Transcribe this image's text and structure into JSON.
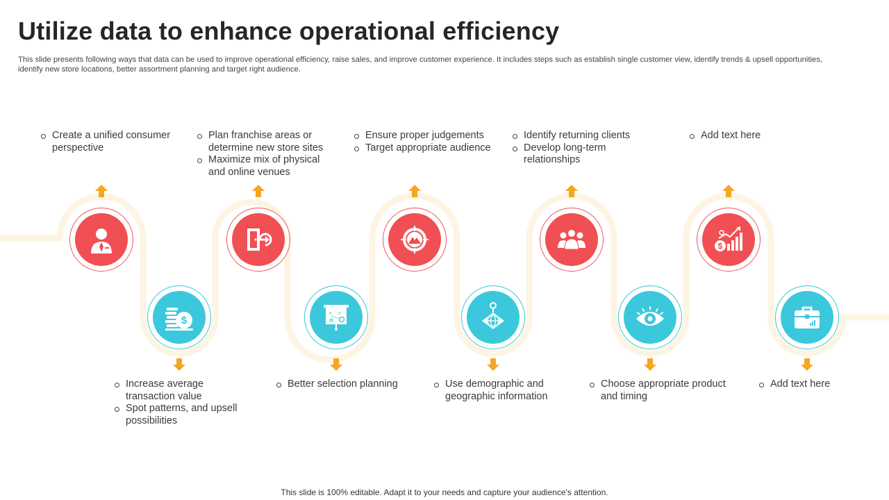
{
  "title": "Utilize data to enhance operational efficiency",
  "subtitle": "This slide presents following ways that data can be used to improve operational efficiency, raise sales, and improve customer experience. It includes steps such as establish single customer view, identify trends & upsell opportunities, identify new store locations, better assortment planning and target right audience.",
  "footer": "This slide is 100% editable. Adapt it to your needs and capture your audience's attention.",
  "colors": {
    "red": "#f04f53",
    "blue": "#3cc8dc",
    "arrow": "#f5a623",
    "path": "#fdf4e3"
  },
  "steps": [
    {
      "color": "red",
      "icon": "customer-service-person-icon",
      "bullets": [
        "Create a unified consumer perspective"
      ]
    },
    {
      "color": "blue",
      "icon": "money-stack-icon",
      "bullets": [
        "Increase average transaction value",
        "Spot patterns, and upsell possibilities"
      ]
    },
    {
      "color": "red",
      "icon": "door-exit-icon",
      "bullets": [
        "Plan franchise areas or determine new store sites",
        "Maximize mix of physical and online venues"
      ]
    },
    {
      "color": "blue",
      "icon": "strategy-board-icon",
      "bullets": [
        "Better selection planning"
      ]
    },
    {
      "color": "red",
      "icon": "target-crosshair-icon",
      "bullets": [
        "Ensure proper judgements",
        "Target appropriate audience"
      ]
    },
    {
      "color": "blue",
      "icon": "globe-location-icon",
      "bullets": [
        "Use demographic and geographic information"
      ]
    },
    {
      "color": "red",
      "icon": "team-group-icon",
      "bullets": [
        "Identify returning clients",
        "Develop long-term relationships"
      ]
    },
    {
      "color": "blue",
      "icon": "eye-vision-icon",
      "bullets": [
        "Choose appropriate product and timing"
      ]
    },
    {
      "color": "red",
      "icon": "growth-chart-icon",
      "bullets": [
        "Add text here"
      ]
    },
    {
      "color": "blue",
      "icon": "briefcase-icon",
      "bullets": [
        "Add text here"
      ]
    }
  ]
}
